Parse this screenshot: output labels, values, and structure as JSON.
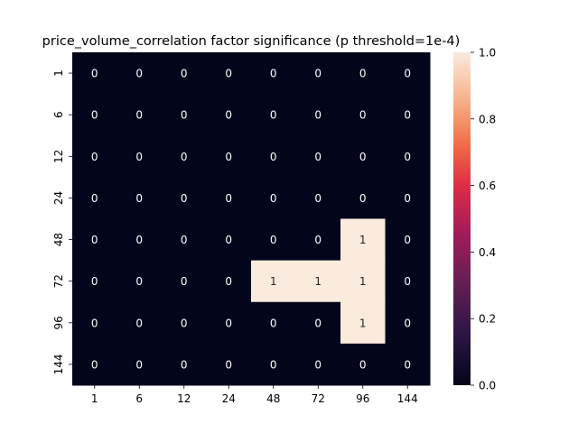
{
  "chart_data": {
    "type": "heatmap",
    "title": "price_volume_correlation factor significance (p threshold=1e-4)",
    "xlabel": "",
    "ylabel": "",
    "x_categories": [
      "1",
      "6",
      "12",
      "24",
      "48",
      "72",
      "96",
      "144"
    ],
    "y_categories": [
      "1",
      "6",
      "12",
      "24",
      "48",
      "72",
      "96",
      "144"
    ],
    "values": [
      [
        0,
        0,
        0,
        0,
        0,
        0,
        0,
        0
      ],
      [
        0,
        0,
        0,
        0,
        0,
        0,
        0,
        0
      ],
      [
        0,
        0,
        0,
        0,
        0,
        0,
        0,
        0
      ],
      [
        0,
        0,
        0,
        0,
        0,
        0,
        0,
        0
      ],
      [
        0,
        0,
        0,
        0,
        0,
        0,
        1,
        0
      ],
      [
        0,
        0,
        0,
        0,
        1,
        1,
        1,
        0
      ],
      [
        0,
        0,
        0,
        0,
        0,
        0,
        1,
        0
      ],
      [
        0,
        0,
        0,
        0,
        0,
        0,
        0,
        0
      ]
    ],
    "annotated": true,
    "colorbar": {
      "range": [
        0.0,
        1.0
      ],
      "ticks": [
        "0.0",
        "0.2",
        "0.4",
        "0.6",
        "0.8",
        "1.0"
      ],
      "colormap": "rocket",
      "low_color": "#03051a",
      "high_color": "#faebdd"
    },
    "grid": false
  }
}
